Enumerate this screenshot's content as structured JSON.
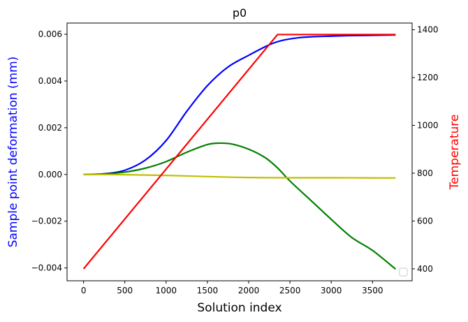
{
  "chart_data": {
    "type": "line",
    "title": "p0",
    "xlabel": "Solution index",
    "ylabel": "Sample point deformation (mm)",
    "y2label": "Temperature",
    "colors": {
      "ylabel": "#0000ff",
      "y2label": "#ff0000"
    },
    "xlim": [
      -200,
      3980
    ],
    "ylim": [
      -0.00455,
      0.00648
    ],
    "y2lim": [
      350,
      1428
    ],
    "xticks": [
      0,
      500,
      1000,
      1500,
      2000,
      2500,
      3000,
      3500
    ],
    "yticks": [
      -0.004,
      -0.002,
      0.0,
      0.002,
      0.004,
      0.006
    ],
    "ytick_labels": [
      "−0.004",
      "−0.002",
      "0.000",
      "0.002",
      "0.004",
      "0.006"
    ],
    "y2ticks": [
      400,
      600,
      800,
      1000,
      1200,
      1400
    ],
    "legend": "lower-right",
    "series": [
      {
        "axis": "left",
        "color": "#0000ff",
        "x": [
          0,
          250,
          500,
          750,
          1000,
          1250,
          1500,
          1750,
          2000,
          2250,
          2400,
          2600,
          2800,
          3000,
          3200,
          3400,
          3600,
          3780
        ],
        "y": [
          0,
          3e-05,
          0.00018,
          0.00062,
          0.00145,
          0.0027,
          0.0038,
          0.0046,
          0.0051,
          0.00555,
          0.00573,
          0.00585,
          0.0059,
          0.00592,
          0.00594,
          0.00595,
          0.00596,
          0.00597
        ]
      },
      {
        "axis": "left",
        "color": "#008000",
        "x": [
          0,
          250,
          500,
          750,
          1000,
          1250,
          1500,
          1650,
          1800,
          2000,
          2200,
          2350,
          2500,
          2750,
          3000,
          3250,
          3500,
          3780
        ],
        "y": [
          0,
          2e-05,
          0.0001,
          0.00027,
          0.00055,
          0.00095,
          0.00128,
          0.00134,
          0.0013,
          0.00108,
          0.00072,
          0.00028,
          -0.00028,
          -0.0011,
          -0.00192,
          -0.0027,
          -0.00325,
          -0.00405
        ]
      },
      {
        "axis": "left",
        "color": "#bfbf00",
        "x": [
          0,
          500,
          1000,
          1500,
          2000,
          2500,
          3000,
          3780
        ],
        "y": [
          0,
          -1e-05,
          -4e-05,
          -9e-05,
          -0.00013,
          -0.00014,
          -0.00014,
          -0.00015
        ]
      },
      {
        "axis": "right",
        "color": "#ff0000",
        "x": [
          0,
          2350,
          3780
        ],
        "y": [
          400,
          1380,
          1380
        ]
      }
    ]
  }
}
